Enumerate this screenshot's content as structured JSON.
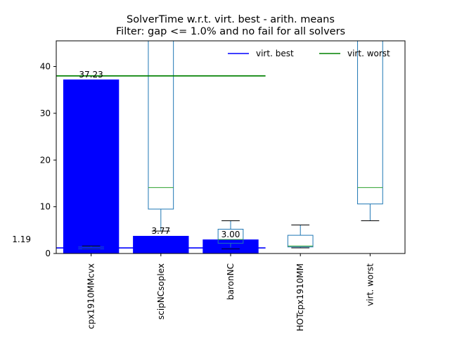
{
  "chart_data": {
    "type": "bar",
    "title": "SolverTime w.r.t. virt. best - arith. means",
    "subtitle": "Filter: gap <= 1.0% and no fail for all solvers",
    "xlabel": "",
    "ylabel": "",
    "ylim": [
      0,
      45.5
    ],
    "yticks": [
      0,
      10,
      20,
      30,
      40
    ],
    "categories": [
      "cpx1910MMcvx",
      "scipNCsoplex",
      "baronNC",
      "HOTcpx1910MM",
      "virt. worst"
    ],
    "bars": {
      "values": [
        37.23,
        3.77,
        3.0,
        null,
        null
      ],
      "labels": [
        "37.23",
        "3.77",
        "3.00",
        "",
        ""
      ],
      "color": "#0000ff"
    },
    "boxes": [
      {
        "whisker_low": 1.0,
        "q1": 1.05,
        "median": 1.2,
        "q3": 1.35,
        "whisker_high": 1.6
      },
      {
        "whisker_low": 4.8,
        "q1": 9.5,
        "median": 14.1,
        "q3": 45.5,
        "whisker_high": 45.5
      },
      {
        "whisker_low": 1.0,
        "q1": 2.2,
        "median": 3.0,
        "q3": 5.2,
        "whisker_high": 7.0
      },
      {
        "whisker_low": 1.2,
        "q1": 1.4,
        "median": 1.6,
        "q3": 3.9,
        "whisker_high": 6.1
      },
      {
        "whisker_low": 7.0,
        "q1": 10.6,
        "median": 14.1,
        "q3": 45.5,
        "whisker_high": 45.5
      }
    ],
    "box_color": "#1f77b4",
    "median_color": "#2ca02c",
    "reference_lines": [
      {
        "name": "virt. best",
        "value": 1.19,
        "color": "#0000ff",
        "label": "1.19"
      },
      {
        "name": "virt. worst",
        "value": 38.0,
        "color": "#008000"
      }
    ],
    "legend": {
      "placement": "top-right",
      "entries": [
        {
          "label": "virt. best",
          "color": "#0000ff"
        },
        {
          "label": "virt. worst",
          "color": "#008000"
        }
      ]
    }
  }
}
